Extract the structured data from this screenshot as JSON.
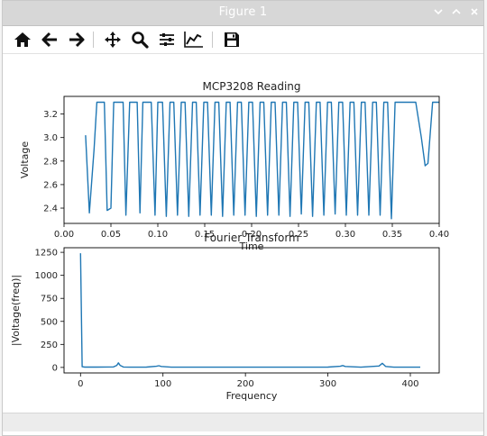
{
  "window": {
    "title": "Figure 1"
  },
  "window_controls": [
    "chevron-down-icon",
    "chevron-up-icon",
    "close-icon"
  ],
  "toolbar": {
    "buttons": [
      {
        "name": "home-icon",
        "title": "Home"
      },
      {
        "name": "back-arrow-icon",
        "title": "Back"
      },
      {
        "name": "forward-arrow-icon",
        "title": "Forward"
      },
      {
        "name": "pan-icon",
        "title": "Pan"
      },
      {
        "name": "zoom-icon",
        "title": "Zoom"
      },
      {
        "name": "subplots-icon",
        "title": "Subplots"
      },
      {
        "name": "customize-icon",
        "title": "Customize"
      },
      {
        "name": "save-icon",
        "title": "Save"
      }
    ]
  },
  "colors": {
    "line": "#1f77b4",
    "axes": "#000000",
    "titlebar": "#d7d7d7"
  },
  "chart_data": [
    {
      "type": "line",
      "title": "MCP3208 Reading",
      "xlabel": "Time",
      "ylabel": "Voltage",
      "xlim": [
        0.0,
        0.4
      ],
      "ylim": [
        2.27,
        3.35
      ],
      "xticks": [
        "0.00",
        "0.05",
        "0.10",
        "0.15",
        "0.20",
        "0.25",
        "0.30",
        "0.35",
        "0.40"
      ],
      "yticks": [
        "2.4",
        "2.6",
        "2.8",
        "3.0",
        "3.2"
      ],
      "grid": false,
      "series": [
        {
          "x": [
            0.023,
            0.027,
            0.032,
            0.035,
            0.038,
            0.043,
            0.046,
            0.05,
            0.053,
            0.058,
            0.063,
            0.066,
            0.07,
            0.073,
            0.078,
            0.081,
            0.084,
            0.09,
            0.093,
            0.097,
            0.1,
            0.105,
            0.109,
            0.113,
            0.117,
            0.121,
            0.125,
            0.129,
            0.133,
            0.137,
            0.141,
            0.145,
            0.149,
            0.153,
            0.157,
            0.161,
            0.165,
            0.169,
            0.173,
            0.177,
            0.181,
            0.185,
            0.189,
            0.193,
            0.197,
            0.201,
            0.205,
            0.209,
            0.213,
            0.217,
            0.221,
            0.225,
            0.229,
            0.233,
            0.237,
            0.241,
            0.245,
            0.249,
            0.253,
            0.257,
            0.261,
            0.265,
            0.269,
            0.273,
            0.277,
            0.281,
            0.285,
            0.289,
            0.293,
            0.297,
            0.301,
            0.305,
            0.309,
            0.313,
            0.317,
            0.321,
            0.325,
            0.329,
            0.333,
            0.337,
            0.341,
            0.345,
            0.349,
            0.353,
            0.357,
            0.375,
            0.381,
            0.385,
            0.388,
            0.393,
            0.395,
            0.4
          ],
          "y": [
            3.02,
            2.36,
            2.9,
            3.3,
            3.3,
            3.3,
            2.38,
            2.4,
            3.3,
            3.3,
            3.3,
            2.34,
            3.3,
            3.3,
            3.3,
            2.36,
            3.3,
            3.3,
            3.3,
            2.34,
            3.3,
            3.3,
            2.33,
            3.3,
            3.3,
            2.34,
            3.3,
            3.3,
            2.33,
            3.3,
            3.3,
            2.34,
            3.3,
            3.3,
            2.34,
            3.3,
            3.3,
            2.33,
            3.3,
            3.3,
            2.34,
            3.3,
            3.3,
            2.34,
            3.3,
            3.3,
            2.33,
            3.3,
            3.3,
            2.34,
            3.3,
            3.3,
            2.34,
            3.3,
            3.3,
            2.33,
            3.3,
            3.3,
            2.35,
            3.3,
            3.3,
            2.33,
            3.3,
            3.3,
            2.34,
            3.3,
            3.3,
            2.35,
            3.3,
            3.3,
            2.34,
            3.3,
            3.3,
            2.34,
            3.3,
            3.3,
            2.34,
            3.3,
            3.3,
            2.34,
            3.3,
            3.3,
            2.31,
            3.3,
            3.3,
            3.3,
            3.0,
            2.76,
            2.78,
            3.3,
            3.3,
            3.3
          ]
        }
      ]
    },
    {
      "type": "line",
      "title": "Fourier Transform",
      "xlabel": "Frequency",
      "ylabel": "|Voltage(freq)|",
      "xlim": [
        -20,
        435
      ],
      "ylim": [
        -60,
        1300
      ],
      "xticks": [
        "0",
        "100",
        "200",
        "300",
        "400"
      ],
      "yticks": [
        "0",
        "250",
        "500",
        "750",
        "1000",
        "1250"
      ],
      "grid": false,
      "series": [
        {
          "x": [
            0,
            2,
            5,
            10,
            20,
            40,
            44,
            46,
            48,
            52,
            60,
            80,
            92,
            95,
            98,
            110,
            150,
            200,
            250,
            300,
            315,
            318,
            321,
            340,
            362,
            366,
            370,
            380,
            400,
            412
          ],
          "y": [
            1240,
            8,
            4,
            5,
            4,
            6,
            22,
            50,
            22,
            5,
            3,
            4,
            12,
            18,
            10,
            3,
            3,
            3,
            3,
            4,
            12,
            20,
            10,
            3,
            15,
            45,
            10,
            3,
            3,
            3
          ]
        }
      ]
    }
  ]
}
